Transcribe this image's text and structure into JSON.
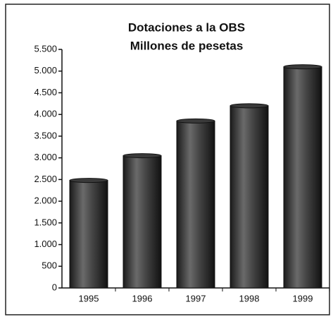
{
  "chart_data": {
    "type": "bar",
    "title": "Dotaciones a la OBS",
    "subtitle": "Millones de pesetas",
    "categories": [
      "1995",
      "1996",
      "1997",
      "1998",
      "1999"
    ],
    "values": [
      2480,
      3050,
      3850,
      4200,
      5100
    ],
    "color": "#3a3a3a",
    "ylim": [
      0,
      5500
    ],
    "yticks": [
      0,
      500,
      {
        "value": 1000,
        "label": "1.000"
      },
      {
        "value": 1500,
        "label": "1.500"
      },
      {
        "value": 2000,
        "label": "2.000"
      },
      {
        "value": 2500,
        "label": "2.500"
      },
      {
        "value": 3000,
        "label": "3.000"
      },
      {
        "value": 3500,
        "label": "3.500"
      },
      {
        "value": 4000,
        "label": "4.000"
      },
      {
        "value": 4500,
        "label": "4.500"
      },
      {
        "value": 5000,
        "label": "5.000"
      },
      {
        "value": 5500,
        "label": "5.500"
      }
    ],
    "grid": false
  }
}
